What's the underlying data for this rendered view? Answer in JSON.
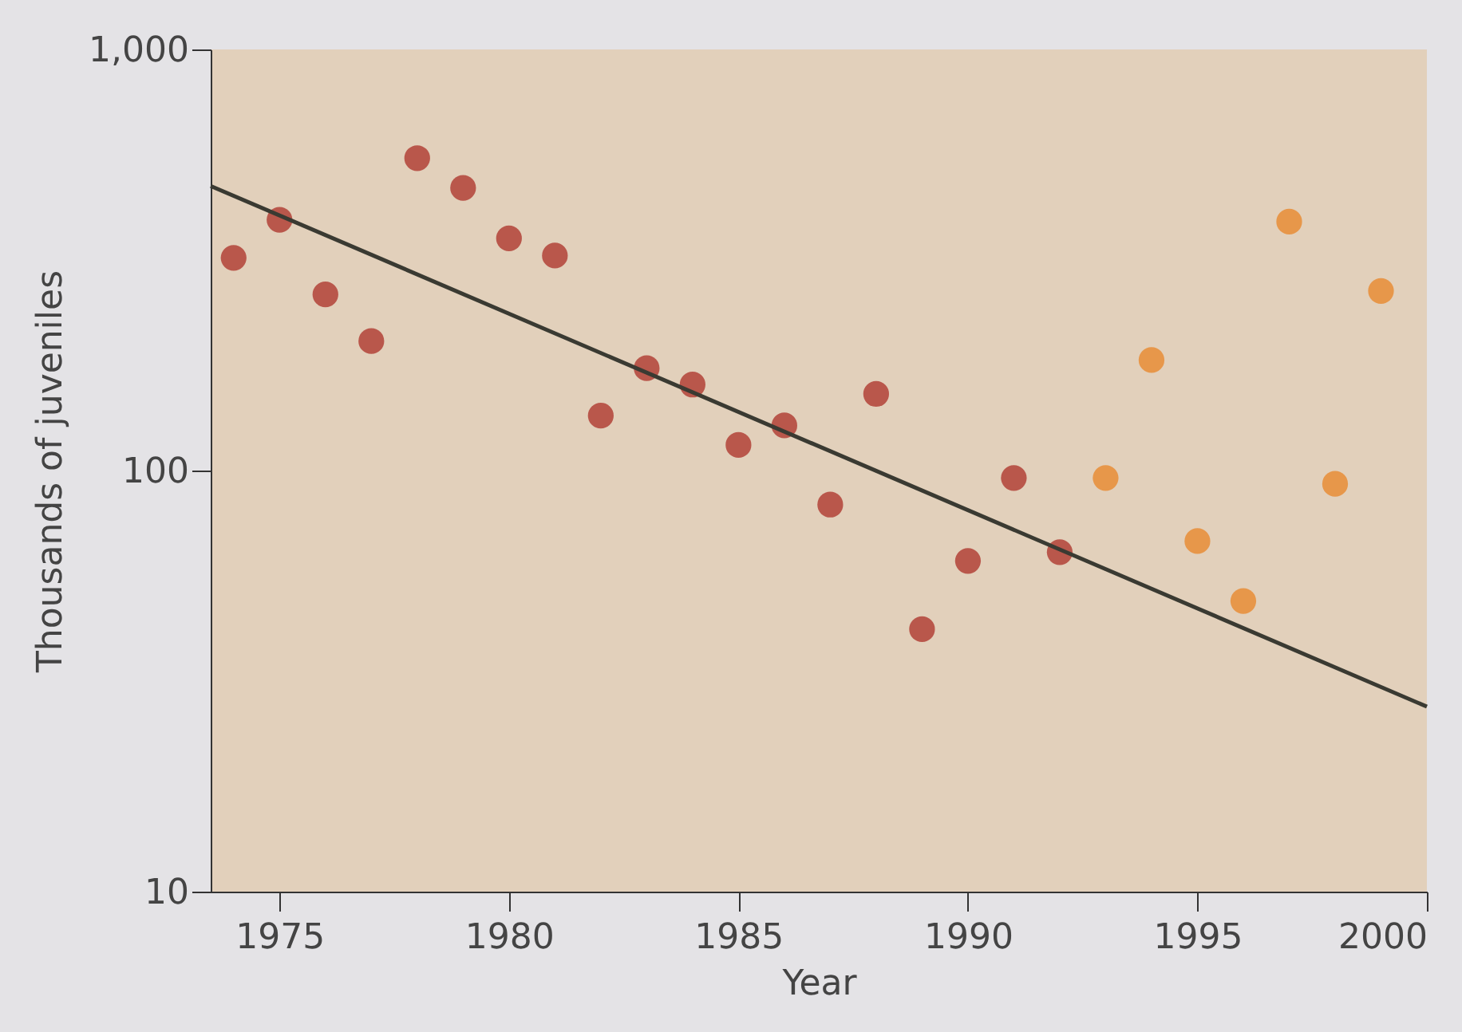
{
  "chart_data": {
    "type": "scatter",
    "xlabel": "Year",
    "ylabel": "Thousands of juveniles",
    "log": "y",
    "grid": false,
    "marker": "circle",
    "xlim": [
      1973.5,
      2000
    ],
    "xticks": [
      1975,
      1980,
      1985,
      1990,
      1995,
      2000
    ],
    "ylim": [
      10,
      1000
    ],
    "yticks": [
      10,
      100,
      {
        "value": 1000,
        "label": "1,000"
      }
    ],
    "series": [
      {
        "color": "#b5493f",
        "x": [
          1974,
          1975,
          1976,
          1977,
          1978,
          1979,
          1980,
          1981,
          1982,
          1983,
          1984,
          1985,
          1986,
          1987,
          1988,
          1989,
          1990,
          1991,
          1992
        ],
        "values": [
          320,
          394,
          262,
          203,
          552,
          469,
          356,
          324,
          135,
          175,
          160,
          115,
          128,
          83,
          152,
          42,
          61,
          96,
          64
        ]
      },
      {
        "color": "#e8903e",
        "x": [
          1993,
          1994,
          1995,
          1996,
          1997,
          1998,
          1999
        ],
        "values": [
          96,
          183,
          68,
          49,
          390,
          93,
          267
        ]
      },
      {
        "type": "line",
        "color": "#3a3a32",
        "line_style": "solid",
        "marker": "none",
        "x": [
          1973.5,
          2000
        ],
        "values": [
          474,
          27.5
        ]
      }
    ]
  }
}
